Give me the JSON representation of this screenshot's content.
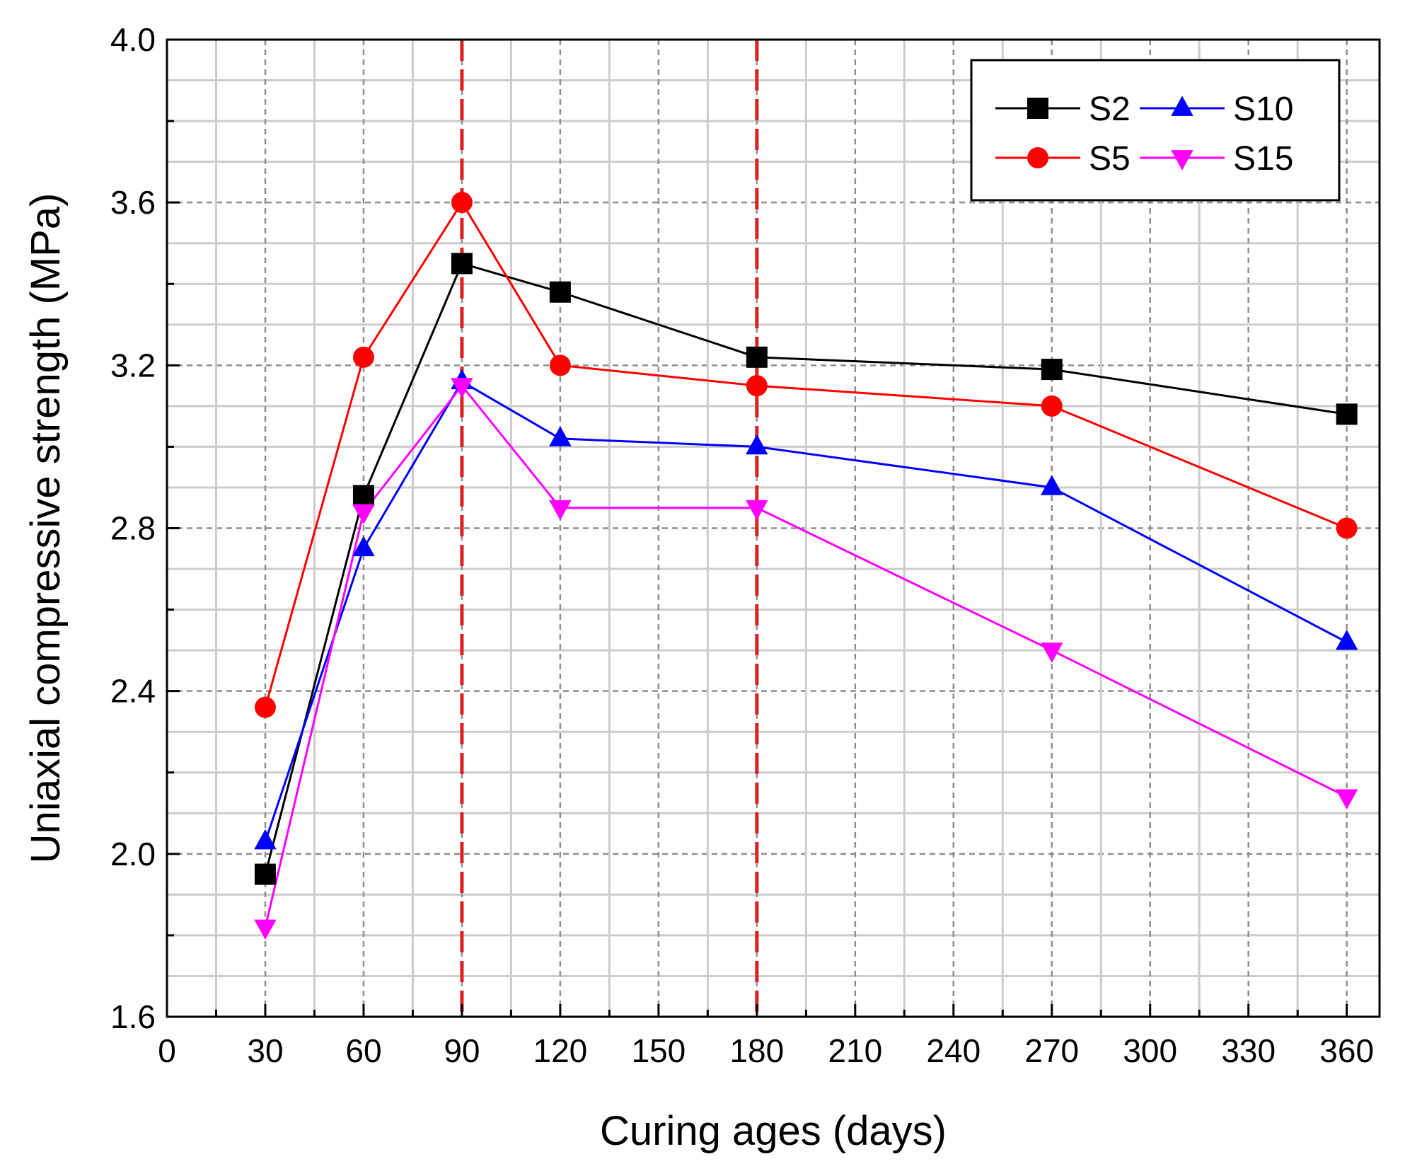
{
  "chart_data": {
    "type": "line",
    "title": "",
    "xlabel": "Curing ages (days)",
    "ylabel": "Uniaxial compressive strength (MPa)",
    "xlim": [
      0,
      370
    ],
    "ylim": [
      1.6,
      4.0
    ],
    "x_ticks": [
      "0",
      "30",
      "60",
      "90",
      "120",
      "150",
      "180",
      "210",
      "240",
      "270",
      "300",
      "330",
      "360"
    ],
    "y_ticks": [
      "1.6",
      "2.0",
      "2.4",
      "2.8",
      "3.2",
      "3.6",
      "4.0"
    ],
    "x": [
      30,
      60,
      90,
      120,
      180,
      270,
      360
    ],
    "reference_lines_x": [
      90,
      180
    ],
    "grid": true,
    "legend_position": "top-right",
    "series": [
      {
        "name": "S2",
        "marker": "square",
        "color": "#000000",
        "values": [
          1.95,
          2.88,
          3.45,
          3.38,
          3.22,
          3.19,
          3.08
        ]
      },
      {
        "name": "S5",
        "marker": "circle",
        "color": "#ff0000",
        "values": [
          2.36,
          3.22,
          3.6,
          3.2,
          3.15,
          3.1,
          2.8
        ]
      },
      {
        "name": "S10",
        "marker": "triangle-up",
        "color": "#0000ff",
        "values": [
          2.03,
          2.75,
          3.16,
          3.02,
          3.0,
          2.9,
          2.52
        ]
      },
      {
        "name": "S15",
        "marker": "triangle-down",
        "color": "#ff00ff",
        "values": [
          1.82,
          2.84,
          3.15,
          2.85,
          2.85,
          2.5,
          2.14
        ]
      }
    ]
  }
}
